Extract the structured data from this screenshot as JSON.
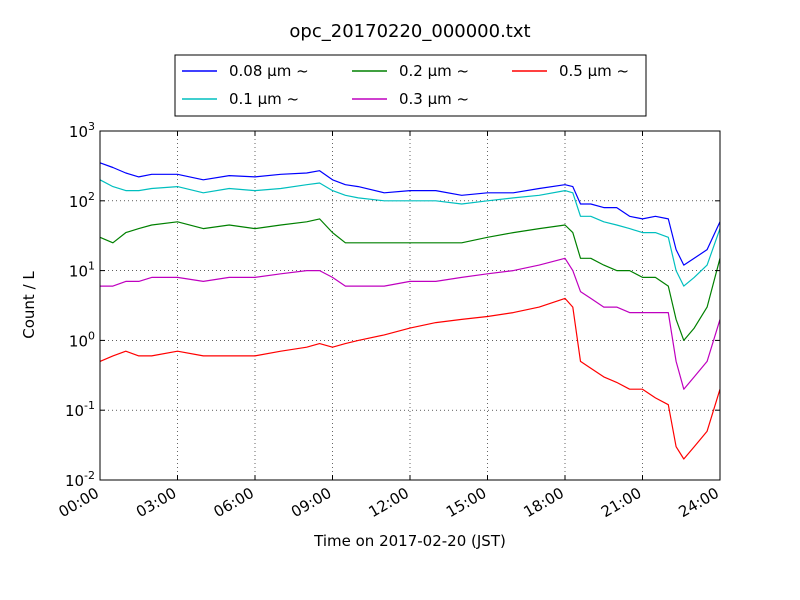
{
  "chart_data": {
    "type": "line",
    "title": "opc_20170220_000000.txt",
    "xlabel": "Time on 2017-02-20 (JST)",
    "ylabel": "Count / L",
    "x_unit": "hours",
    "xlim": [
      0,
      24
    ],
    "ylim": [
      0.01,
      1000
    ],
    "yscale": "log",
    "grid": true,
    "legend_position": "top (above plot, 3 columns)",
    "xticks": [
      {
        "value": 0,
        "label": "00:00"
      },
      {
        "value": 3,
        "label": "03:00"
      },
      {
        "value": 6,
        "label": "06:00"
      },
      {
        "value": 9,
        "label": "09:00"
      },
      {
        "value": 12,
        "label": "12:00"
      },
      {
        "value": 15,
        "label": "15:00"
      },
      {
        "value": 18,
        "label": "18:00"
      },
      {
        "value": 21,
        "label": "21:00"
      },
      {
        "value": 24,
        "label": "24:00"
      }
    ],
    "yticks": [
      {
        "value": 0.01,
        "base": "10",
        "exp": "-2"
      },
      {
        "value": 0.1,
        "base": "10",
        "exp": "-1"
      },
      {
        "value": 1,
        "base": "10",
        "exp": "0"
      },
      {
        "value": 10,
        "base": "10",
        "exp": "1"
      },
      {
        "value": 100,
        "base": "10",
        "exp": "2"
      },
      {
        "value": 1000,
        "base": "10",
        "exp": "3"
      }
    ],
    "x": [
      0,
      0.5,
      1,
      1.5,
      2,
      3,
      4,
      5,
      6,
      7,
      8,
      8.5,
      9,
      9.5,
      10,
      11,
      12,
      13,
      14,
      15,
      16,
      17,
      18,
      18.3,
      18.6,
      19,
      19.5,
      20,
      20.5,
      21,
      21.5,
      22,
      22.3,
      22.6,
      23,
      23.5,
      24
    ],
    "series": [
      {
        "name": "0.08 μm ~",
        "color": "#0000ff",
        "values": [
          350,
          300,
          250,
          220,
          240,
          240,
          200,
          230,
          220,
          240,
          250,
          270,
          200,
          170,
          160,
          130,
          140,
          140,
          120,
          130,
          130,
          150,
          170,
          160,
          90,
          90,
          80,
          80,
          60,
          55,
          60,
          55,
          20,
          12,
          15,
          20,
          50
        ]
      },
      {
        "name": "0.1 μm ~",
        "color": "#00bfbf",
        "values": [
          200,
          160,
          140,
          140,
          150,
          160,
          130,
          150,
          140,
          150,
          170,
          180,
          140,
          120,
          110,
          100,
          100,
          100,
          90,
          100,
          110,
          120,
          140,
          130,
          60,
          60,
          50,
          45,
          40,
          35,
          35,
          30,
          10,
          6,
          8,
          12,
          40
        ]
      },
      {
        "name": "0.2 μm ~",
        "color": "#008000",
        "values": [
          30,
          25,
          35,
          40,
          45,
          50,
          40,
          45,
          40,
          45,
          50,
          55,
          35,
          25,
          25,
          25,
          25,
          25,
          25,
          30,
          35,
          40,
          45,
          35,
          15,
          15,
          12,
          10,
          10,
          8,
          8,
          6,
          2,
          1,
          1.5,
          3,
          15
        ]
      },
      {
        "name": "0.3 μm ~",
        "color": "#bf00bf",
        "values": [
          6,
          6,
          7,
          7,
          8,
          8,
          7,
          8,
          8,
          9,
          10,
          10,
          8,
          6,
          6,
          6,
          7,
          7,
          8,
          9,
          10,
          12,
          15,
          10,
          5,
          4,
          3,
          3,
          2.5,
          2.5,
          2.5,
          2.5,
          0.5,
          0.2,
          0.3,
          0.5,
          2
        ]
      },
      {
        "name": "0.5 μm ~",
        "color": "#ff0000",
        "values": [
          0.5,
          0.6,
          0.7,
          0.6,
          0.6,
          0.7,
          0.6,
          0.6,
          0.6,
          0.7,
          0.8,
          0.9,
          0.8,
          0.9,
          1,
          1.2,
          1.5,
          1.8,
          2,
          2.2,
          2.5,
          3,
          4,
          3,
          0.5,
          0.4,
          0.3,
          0.25,
          0.2,
          0.2,
          0.15,
          0.12,
          0.03,
          0.02,
          0.03,
          0.05,
          0.2
        ]
      }
    ]
  }
}
